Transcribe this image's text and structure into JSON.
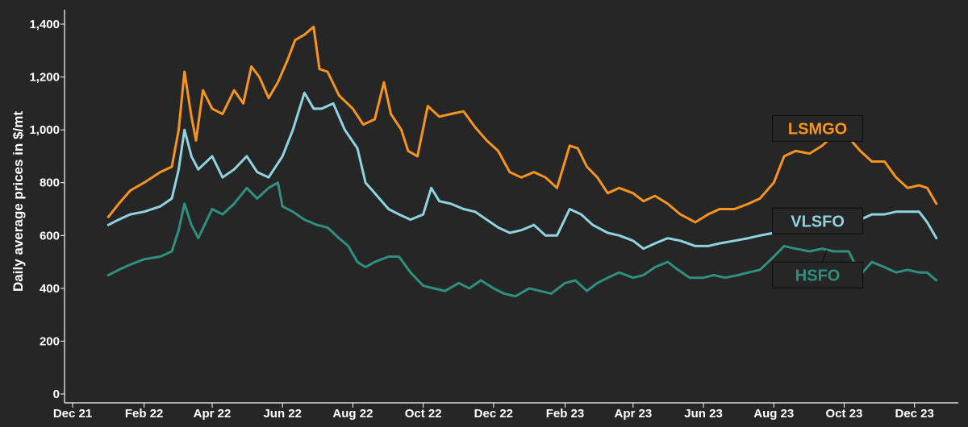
{
  "chart_data": {
    "type": "line",
    "title": "",
    "xlabel": "",
    "ylabel": "Daily average prices in $/mt",
    "ylim": [
      0,
      1400
    ],
    "yticks": [
      0,
      200,
      400,
      600,
      800,
      1000,
      1200,
      1400
    ],
    "ytick_labels": [
      "0",
      "200",
      "400",
      "600",
      "800",
      "1,000",
      "1,200",
      "1,400"
    ],
    "xlim": [
      "2021-12-01",
      "2024-01-01"
    ],
    "xtick_dates": [
      "2021-12-01",
      "2022-02-01",
      "2022-04-01",
      "2022-06-01",
      "2022-08-01",
      "2022-10-01",
      "2022-12-01",
      "2023-02-01",
      "2023-04-01",
      "2023-06-01",
      "2023-08-01",
      "2023-10-01",
      "2023-12-01"
    ],
    "xtick_labels": [
      "Dec 21",
      "Feb 22",
      "Apr 22",
      "Jun 22",
      "Aug 22",
      "Oct 22",
      "Dec 22",
      "Feb 23",
      "Apr 23",
      "Jun 23",
      "Aug 23",
      "Oct 23",
      "Dec 23"
    ],
    "grid": false,
    "legend": "none",
    "series": [
      {
        "name": "LSMGO",
        "color": "#f7941d",
        "label_box": {
          "date": "2023-09-08",
          "value": 1005,
          "arrow_to": [
            "2023-09-25",
            980
          ]
        },
        "points": [
          [
            "2022-01-01",
            670
          ],
          [
            "2022-01-10",
            720
          ],
          [
            "2022-01-20",
            770
          ],
          [
            "2022-02-01",
            800
          ],
          [
            "2022-02-15",
            840
          ],
          [
            "2022-02-25",
            860
          ],
          [
            "2022-03-03",
            1000
          ],
          [
            "2022-03-08",
            1220
          ],
          [
            "2022-03-14",
            1050
          ],
          [
            "2022-03-18",
            960
          ],
          [
            "2022-03-24",
            1150
          ],
          [
            "2022-04-01",
            1080
          ],
          [
            "2022-04-10",
            1060
          ],
          [
            "2022-04-20",
            1150
          ],
          [
            "2022-04-28",
            1100
          ],
          [
            "2022-05-05",
            1240
          ],
          [
            "2022-05-12",
            1200
          ],
          [
            "2022-05-20",
            1120
          ],
          [
            "2022-05-28",
            1180
          ],
          [
            "2022-06-05",
            1260
          ],
          [
            "2022-06-12",
            1340
          ],
          [
            "2022-06-20",
            1360
          ],
          [
            "2022-06-28",
            1390
          ],
          [
            "2022-07-03",
            1230
          ],
          [
            "2022-07-10",
            1220
          ],
          [
            "2022-07-20",
            1130
          ],
          [
            "2022-08-01",
            1080
          ],
          [
            "2022-08-10",
            1020
          ],
          [
            "2022-08-20",
            1040
          ],
          [
            "2022-08-28",
            1180
          ],
          [
            "2022-09-03",
            1060
          ],
          [
            "2022-09-12",
            1000
          ],
          [
            "2022-09-18",
            920
          ],
          [
            "2022-09-26",
            900
          ],
          [
            "2022-10-05",
            1090
          ],
          [
            "2022-10-15",
            1050
          ],
          [
            "2022-10-25",
            1060
          ],
          [
            "2022-11-05",
            1070
          ],
          [
            "2022-11-15",
            1010
          ],
          [
            "2022-11-25",
            960
          ],
          [
            "2022-12-05",
            920
          ],
          [
            "2022-12-15",
            840
          ],
          [
            "2022-12-25",
            820
          ],
          [
            "2023-01-05",
            840
          ],
          [
            "2023-01-15",
            820
          ],
          [
            "2023-01-25",
            780
          ],
          [
            "2023-02-05",
            940
          ],
          [
            "2023-02-12",
            930
          ],
          [
            "2023-02-20",
            860
          ],
          [
            "2023-03-01",
            820
          ],
          [
            "2023-03-10",
            760
          ],
          [
            "2023-03-20",
            780
          ],
          [
            "2023-04-01",
            760
          ],
          [
            "2023-04-10",
            730
          ],
          [
            "2023-04-20",
            750
          ],
          [
            "2023-05-01",
            720
          ],
          [
            "2023-05-12",
            680
          ],
          [
            "2023-05-25",
            650
          ],
          [
            "2023-06-05",
            680
          ],
          [
            "2023-06-15",
            700
          ],
          [
            "2023-06-28",
            700
          ],
          [
            "2023-07-10",
            720
          ],
          [
            "2023-07-20",
            740
          ],
          [
            "2023-08-01",
            800
          ],
          [
            "2023-08-10",
            900
          ],
          [
            "2023-08-20",
            920
          ],
          [
            "2023-09-01",
            910
          ],
          [
            "2023-09-12",
            940
          ],
          [
            "2023-09-22",
            980
          ],
          [
            "2023-10-05",
            970
          ],
          [
            "2023-10-15",
            920
          ],
          [
            "2023-10-25",
            880
          ],
          [
            "2023-11-05",
            880
          ],
          [
            "2023-11-15",
            820
          ],
          [
            "2023-11-25",
            780
          ],
          [
            "2023-12-05",
            790
          ],
          [
            "2023-12-12",
            780
          ],
          [
            "2023-12-20",
            720
          ]
        ]
      },
      {
        "name": "VLSFO",
        "color": "#8fd3e0",
        "label_box": {
          "date": "2023-09-08",
          "value": 655,
          "arrow_to": [
            "2023-09-20",
            650
          ]
        },
        "points": [
          [
            "2022-01-01",
            640
          ],
          [
            "2022-01-10",
            660
          ],
          [
            "2022-01-20",
            680
          ],
          [
            "2022-02-01",
            690
          ],
          [
            "2022-02-15",
            710
          ],
          [
            "2022-02-25",
            740
          ],
          [
            "2022-03-03",
            850
          ],
          [
            "2022-03-08",
            1000
          ],
          [
            "2022-03-14",
            900
          ],
          [
            "2022-03-20",
            850
          ],
          [
            "2022-04-01",
            900
          ],
          [
            "2022-04-10",
            820
          ],
          [
            "2022-04-20",
            850
          ],
          [
            "2022-05-01",
            900
          ],
          [
            "2022-05-10",
            840
          ],
          [
            "2022-05-20",
            820
          ],
          [
            "2022-06-01",
            900
          ],
          [
            "2022-06-10",
            1000
          ],
          [
            "2022-06-20",
            1140
          ],
          [
            "2022-06-28",
            1080
          ],
          [
            "2022-07-05",
            1080
          ],
          [
            "2022-07-15",
            1100
          ],
          [
            "2022-07-25",
            1000
          ],
          [
            "2022-08-05",
            930
          ],
          [
            "2022-08-12",
            800
          ],
          [
            "2022-08-20",
            760
          ],
          [
            "2022-09-01",
            700
          ],
          [
            "2022-09-10",
            680
          ],
          [
            "2022-09-20",
            660
          ],
          [
            "2022-10-01",
            680
          ],
          [
            "2022-10-08",
            780
          ],
          [
            "2022-10-15",
            730
          ],
          [
            "2022-10-25",
            720
          ],
          [
            "2022-11-05",
            700
          ],
          [
            "2022-11-15",
            690
          ],
          [
            "2022-11-25",
            660
          ],
          [
            "2022-12-05",
            630
          ],
          [
            "2022-12-15",
            610
          ],
          [
            "2022-12-25",
            620
          ],
          [
            "2023-01-05",
            640
          ],
          [
            "2023-01-15",
            600
          ],
          [
            "2023-01-25",
            600
          ],
          [
            "2023-02-05",
            700
          ],
          [
            "2023-02-15",
            680
          ],
          [
            "2023-02-25",
            640
          ],
          [
            "2023-03-10",
            610
          ],
          [
            "2023-03-20",
            600
          ],
          [
            "2023-04-01",
            580
          ],
          [
            "2023-04-10",
            550
          ],
          [
            "2023-04-20",
            570
          ],
          [
            "2023-05-01",
            590
          ],
          [
            "2023-05-12",
            580
          ],
          [
            "2023-05-25",
            560
          ],
          [
            "2023-06-05",
            560
          ],
          [
            "2023-06-15",
            570
          ],
          [
            "2023-06-28",
            580
          ],
          [
            "2023-07-10",
            590
          ],
          [
            "2023-07-20",
            600
          ],
          [
            "2023-08-01",
            610
          ],
          [
            "2023-08-10",
            650
          ],
          [
            "2023-08-20",
            650
          ],
          [
            "2023-09-01",
            660
          ],
          [
            "2023-09-12",
            670
          ],
          [
            "2023-09-22",
            680
          ],
          [
            "2023-10-05",
            660
          ],
          [
            "2023-10-15",
            660
          ],
          [
            "2023-10-25",
            680
          ],
          [
            "2023-11-05",
            680
          ],
          [
            "2023-11-15",
            690
          ],
          [
            "2023-11-25",
            690
          ],
          [
            "2023-12-05",
            690
          ],
          [
            "2023-12-12",
            650
          ],
          [
            "2023-12-20",
            590
          ]
        ]
      },
      {
        "name": "HSFO",
        "color": "#2f8f80",
        "label_box": {
          "date": "2023-09-08",
          "value": 450,
          "arrow_to": [
            "2023-09-16",
            545
          ]
        },
        "points": [
          [
            "2022-01-01",
            450
          ],
          [
            "2022-01-10",
            470
          ],
          [
            "2022-01-20",
            490
          ],
          [
            "2022-02-01",
            510
          ],
          [
            "2022-02-15",
            520
          ],
          [
            "2022-02-25",
            540
          ],
          [
            "2022-03-03",
            620
          ],
          [
            "2022-03-08",
            720
          ],
          [
            "2022-03-14",
            640
          ],
          [
            "2022-03-20",
            590
          ],
          [
            "2022-04-01",
            700
          ],
          [
            "2022-04-10",
            680
          ],
          [
            "2022-04-20",
            720
          ],
          [
            "2022-05-01",
            780
          ],
          [
            "2022-05-10",
            740
          ],
          [
            "2022-05-20",
            780
          ],
          [
            "2022-05-28",
            800
          ],
          [
            "2022-06-01",
            710
          ],
          [
            "2022-06-10",
            690
          ],
          [
            "2022-06-20",
            660
          ],
          [
            "2022-07-01",
            640
          ],
          [
            "2022-07-10",
            630
          ],
          [
            "2022-07-20",
            590
          ],
          [
            "2022-07-28",
            560
          ],
          [
            "2022-08-05",
            500
          ],
          [
            "2022-08-12",
            480
          ],
          [
            "2022-08-20",
            500
          ],
          [
            "2022-09-01",
            520
          ],
          [
            "2022-09-10",
            520
          ],
          [
            "2022-09-20",
            460
          ],
          [
            "2022-10-01",
            410
          ],
          [
            "2022-10-10",
            400
          ],
          [
            "2022-10-20",
            390
          ],
          [
            "2022-11-01",
            420
          ],
          [
            "2022-11-10",
            400
          ],
          [
            "2022-11-20",
            430
          ],
          [
            "2022-12-01",
            400
          ],
          [
            "2022-12-10",
            380
          ],
          [
            "2022-12-20",
            370
          ],
          [
            "2023-01-01",
            400
          ],
          [
            "2023-01-10",
            390
          ],
          [
            "2023-01-20",
            380
          ],
          [
            "2023-02-01",
            420
          ],
          [
            "2023-02-10",
            430
          ],
          [
            "2023-02-20",
            390
          ],
          [
            "2023-03-01",
            420
          ],
          [
            "2023-03-10",
            440
          ],
          [
            "2023-03-20",
            460
          ],
          [
            "2023-04-01",
            440
          ],
          [
            "2023-04-10",
            450
          ],
          [
            "2023-04-20",
            480
          ],
          [
            "2023-05-01",
            500
          ],
          [
            "2023-05-10",
            470
          ],
          [
            "2023-05-20",
            440
          ],
          [
            "2023-06-01",
            440
          ],
          [
            "2023-06-10",
            450
          ],
          [
            "2023-06-20",
            440
          ],
          [
            "2023-07-01",
            450
          ],
          [
            "2023-07-10",
            460
          ],
          [
            "2023-07-20",
            470
          ],
          [
            "2023-08-01",
            520
          ],
          [
            "2023-08-10",
            560
          ],
          [
            "2023-08-20",
            550
          ],
          [
            "2023-09-01",
            540
          ],
          [
            "2023-09-12",
            550
          ],
          [
            "2023-09-22",
            540
          ],
          [
            "2023-10-05",
            540
          ],
          [
            "2023-10-15",
            450
          ],
          [
            "2023-10-25",
            500
          ],
          [
            "2023-11-05",
            480
          ],
          [
            "2023-11-15",
            460
          ],
          [
            "2023-11-25",
            470
          ],
          [
            "2023-12-05",
            460
          ],
          [
            "2023-12-12",
            460
          ],
          [
            "2023-12-20",
            430
          ]
        ]
      }
    ]
  }
}
